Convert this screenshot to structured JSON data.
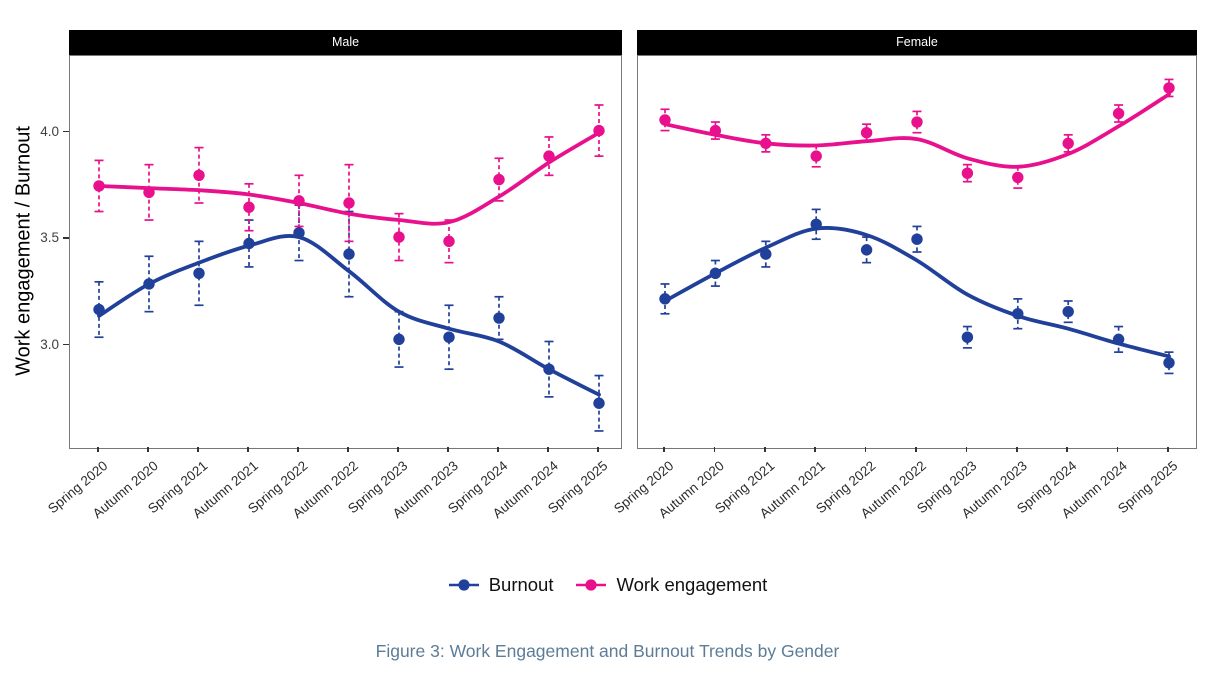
{
  "figure": {
    "caption": "Figure 3: Work Engagement and Burnout Trends by Gender",
    "y_axis_title": "Work engagement / Burnout"
  },
  "legend": [
    {
      "label": "Burnout",
      "color": "#21409a"
    },
    {
      "label": "Work engagement",
      "color": "#e8108c"
    }
  ],
  "colors": {
    "burnout": "#21409a",
    "engagement": "#e8108c",
    "strip_bg": "#000000",
    "strip_text": "#ffffff",
    "caption_text": "#5d7c96",
    "axis_text": "#404040"
  },
  "chart_data": {
    "type": "line",
    "title": "",
    "xlabel": "",
    "ylabel": "Work engagement / Burnout",
    "categories": [
      "Spring 2020",
      "Autumn 2020",
      "Spring 2021",
      "Autumn 2021",
      "Spring 2022",
      "Autumn 2022",
      "Spring 2023",
      "Autumn 2023",
      "Spring 2024",
      "Autumn 2024",
      "Spring 2025"
    ],
    "ylim": [
      2.52,
      4.36
    ],
    "yticks": [
      3.0,
      3.5,
      4.0
    ],
    "grid": false,
    "legend_position": "bottom",
    "x_label_angle": 40,
    "point_style": "filled circle with dashed error bars and loess smooth line",
    "facets": [
      {
        "label": "Male",
        "series": [
          {
            "name": "Burnout",
            "color": "#21409a",
            "values": [
              3.17,
              3.29,
              3.34,
              3.48,
              3.53,
              3.43,
              3.03,
              3.04,
              3.13,
              2.89,
              2.73
            ],
            "se": [
              0.13,
              0.13,
              0.15,
              0.11,
              0.13,
              0.2,
              0.13,
              0.15,
              0.1,
              0.13,
              0.13
            ],
            "smooth": [
              3.14,
              3.29,
              3.39,
              3.47,
              3.51,
              3.35,
              3.16,
              3.08,
              3.02,
              2.89,
              2.77
            ]
          },
          {
            "name": "Work engagement",
            "color": "#e8108c",
            "values": [
              3.75,
              3.72,
              3.8,
              3.65,
              3.68,
              3.67,
              3.51,
              3.49,
              3.78,
              3.89,
              4.01
            ],
            "se": [
              0.12,
              0.13,
              0.13,
              0.11,
              0.12,
              0.18,
              0.11,
              0.1,
              0.1,
              0.09,
              0.12
            ],
            "smooth": [
              3.75,
              3.74,
              3.73,
              3.71,
              3.67,
              3.62,
              3.59,
              3.58,
              3.7,
              3.86,
              4.0
            ]
          }
        ]
      },
      {
        "label": "Female",
        "series": [
          {
            "name": "Burnout",
            "color": "#21409a",
            "values": [
              3.22,
              3.34,
              3.43,
              3.57,
              3.45,
              3.5,
              3.04,
              3.15,
              3.16,
              3.03,
              2.92
            ],
            "se": [
              0.07,
              0.06,
              0.06,
              0.07,
              0.06,
              0.06,
              0.05,
              0.07,
              0.05,
              0.06,
              0.05
            ],
            "smooth": [
              3.21,
              3.34,
              3.46,
              3.55,
              3.52,
              3.4,
              3.24,
              3.14,
              3.08,
              3.01,
              2.95
            ]
          },
          {
            "name": "Work engagement",
            "color": "#e8108c",
            "values": [
              4.06,
              4.01,
              3.95,
              3.89,
              4.0,
              4.05,
              3.81,
              3.79,
              3.95,
              4.09,
              4.21
            ],
            "se": [
              0.05,
              0.04,
              0.04,
              0.05,
              0.04,
              0.05,
              0.04,
              0.05,
              0.04,
              0.04,
              0.04
            ],
            "smooth": [
              4.04,
              3.99,
              3.95,
              3.94,
              3.96,
              3.97,
              3.88,
              3.84,
              3.9,
              4.03,
              4.18
            ]
          }
        ]
      }
    ]
  }
}
